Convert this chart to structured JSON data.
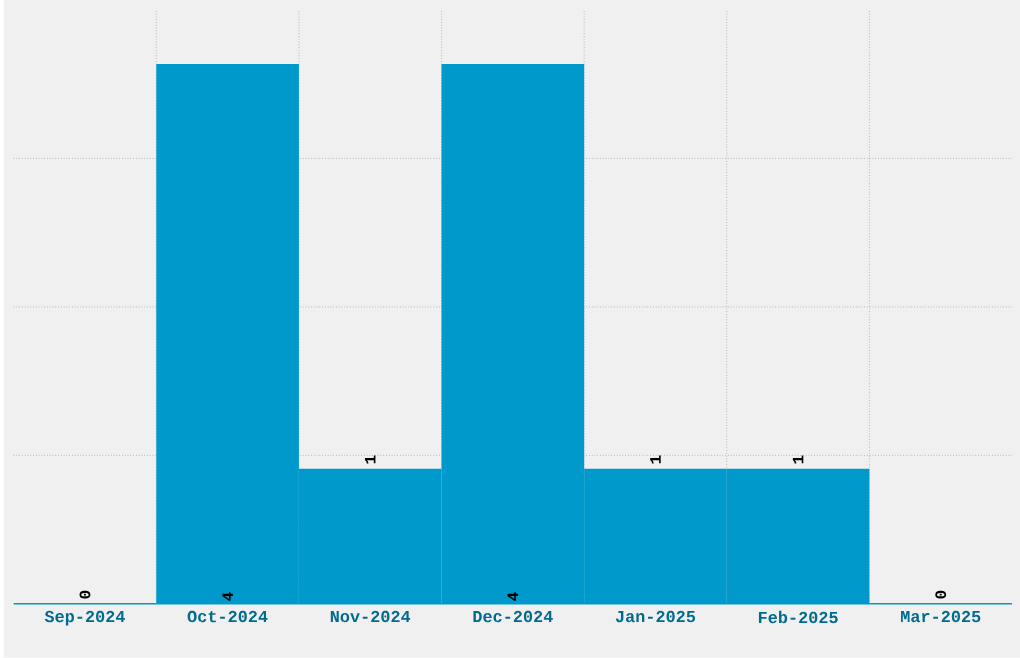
{
  "chart_data": {
    "type": "bar",
    "categories": [
      "Sep-2024",
      "Oct-2024",
      "Nov-2024",
      "Dec-2024",
      "Jan-2025",
      "Feb-2025",
      "Mar-2025"
    ],
    "values": [
      0,
      4,
      1,
      4,
      1,
      1,
      0
    ],
    "color": "#0099cc",
    "ylim": [
      0,
      4.4
    ],
    "yticks": [
      {
        "value": 1.1,
        "label": null
      },
      {
        "value": 2.2,
        "label": null
      },
      {
        "value": 3.3,
        "label": null
      }
    ],
    "grid": true,
    "data_labels": true,
    "tick_labels": "x"
  }
}
